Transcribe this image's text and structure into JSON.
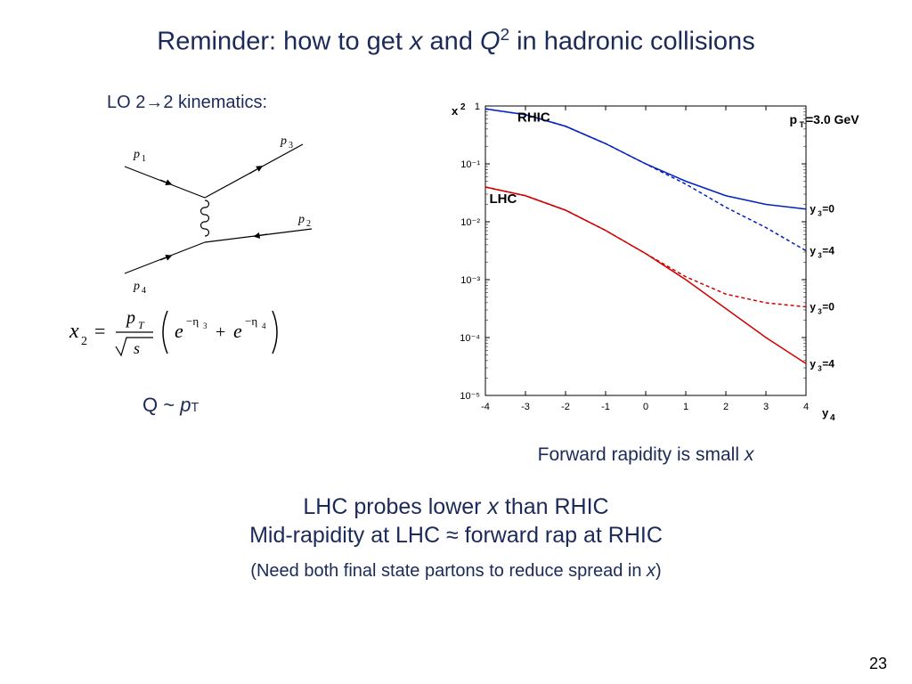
{
  "title_parts": {
    "pre": "Reminder: how to get ",
    "x": "x",
    "mid": " and ",
    "Q": "Q",
    "sup": "2",
    "post": " in hadronic collisions"
  },
  "left": {
    "label": "LO 2→2 kinematics:",
    "qpt_Q": "Q",
    "qpt_tilde": " ~ ",
    "qpt_p": "p",
    "qpt_T": "T",
    "feynman": {
      "labels": [
        "p₁",
        "p₂",
        "p₃",
        "p₄"
      ],
      "line_color": "#000000"
    },
    "formula": {
      "text_color": "#000000",
      "x2": "x",
      "sub2": "2",
      "eq": " = ",
      "pT": "p",
      "pT_sub": "T",
      "sqrt_s": "s",
      "e": "e",
      "eta3": "−η",
      "eta3_sub": "3",
      "plus": " + ",
      "eta4": "−η",
      "eta4_sub": "4"
    }
  },
  "chart": {
    "type": "line-log",
    "y_axis_label": "x₂",
    "x_axis_label": "y₄",
    "xlim": [
      -4,
      4
    ],
    "x_ticks": [
      -4,
      -3,
      -2,
      -1,
      0,
      1,
      2,
      3,
      4
    ],
    "ylim_exp": [
      -5,
      0
    ],
    "y_ticks_exp": [
      -5,
      -4,
      -3,
      -2,
      -1,
      0
    ],
    "y_tick_labels": [
      "10⁻⁵",
      "10⁻⁴",
      "10⁻³",
      "10⁻²",
      "10⁻¹",
      "1"
    ],
    "pt_label": "p_T=3.0 GeV",
    "series": [
      {
        "name": "RHIC y3=0",
        "label": "RHIC",
        "color": "#0020c0",
        "dash": "none",
        "points": [
          [
            -4,
            -0.05
          ],
          [
            -3,
            -0.15
          ],
          [
            -2,
            -0.35
          ],
          [
            -1,
            -0.65
          ],
          [
            0,
            -1.0
          ],
          [
            1,
            -1.3
          ],
          [
            2,
            -1.55
          ],
          [
            3,
            -1.7
          ],
          [
            4,
            -1.78
          ]
        ]
      },
      {
        "name": "RHIC y3=4",
        "color": "#0020c0",
        "dash": "4,3",
        "points": [
          [
            -4,
            -0.05
          ],
          [
            -3,
            -0.15
          ],
          [
            -2,
            -0.35
          ],
          [
            -1,
            -0.65
          ],
          [
            0,
            -1.0
          ],
          [
            1,
            -1.35
          ],
          [
            2,
            -1.75
          ],
          [
            3,
            -2.1
          ],
          [
            4,
            -2.5
          ]
        ],
        "y3_label": "y₃=4",
        "y3_label_pos": [
          4.05,
          -2.5
        ]
      },
      {
        "name": "RHIC y3=0 annot",
        "color": "#000000",
        "y3_label": "y₃=0",
        "y3_label_pos": [
          4.05,
          -1.78
        ]
      },
      {
        "name": "LHC y3=0",
        "label": "LHC",
        "color": "#d00000",
        "dash": "4,3",
        "points": [
          [
            -4,
            -1.4
          ],
          [
            -3,
            -1.55
          ],
          [
            -2,
            -1.8
          ],
          [
            -1,
            -2.15
          ],
          [
            0,
            -2.55
          ],
          [
            1,
            -2.95
          ],
          [
            2,
            -3.25
          ],
          [
            3,
            -3.4
          ],
          [
            4,
            -3.47
          ]
        ],
        "y3_label": "y₃=0",
        "y3_label_pos": [
          4.05,
          -3.47
        ]
      },
      {
        "name": "LHC y3=4",
        "color": "#d00000",
        "dash": "none",
        "points": [
          [
            -4,
            -1.4
          ],
          [
            -3,
            -1.55
          ],
          [
            -2,
            -1.8
          ],
          [
            -1,
            -2.15
          ],
          [
            0,
            -2.55
          ],
          [
            1,
            -3.0
          ],
          [
            2,
            -3.5
          ],
          [
            3,
            -4.0
          ],
          [
            4,
            -4.45
          ]
        ],
        "y3_label": "y₃=4",
        "y3_label_pos": [
          4.05,
          -4.45
        ]
      }
    ],
    "axis_color": "#000000",
    "line_width": 1.5,
    "tick_fontsize": 11,
    "label_fontsize": 13,
    "annot_fontsize": 12,
    "background": "#ffffff"
  },
  "forward_label_pre": "Forward rapidity is small ",
  "forward_label_x": "x",
  "bottom": {
    "line1a_pre": "LHC probes lower ",
    "line1a_x": "x",
    "line1a_post": " than RHIC",
    "line1b": "Mid-rapidity at LHC ≈ forward rap at RHIC",
    "line2_pre": "(Need both final state partons to reduce spread in ",
    "line2_x": "x",
    "line2_post": ")"
  },
  "page_number": "23"
}
